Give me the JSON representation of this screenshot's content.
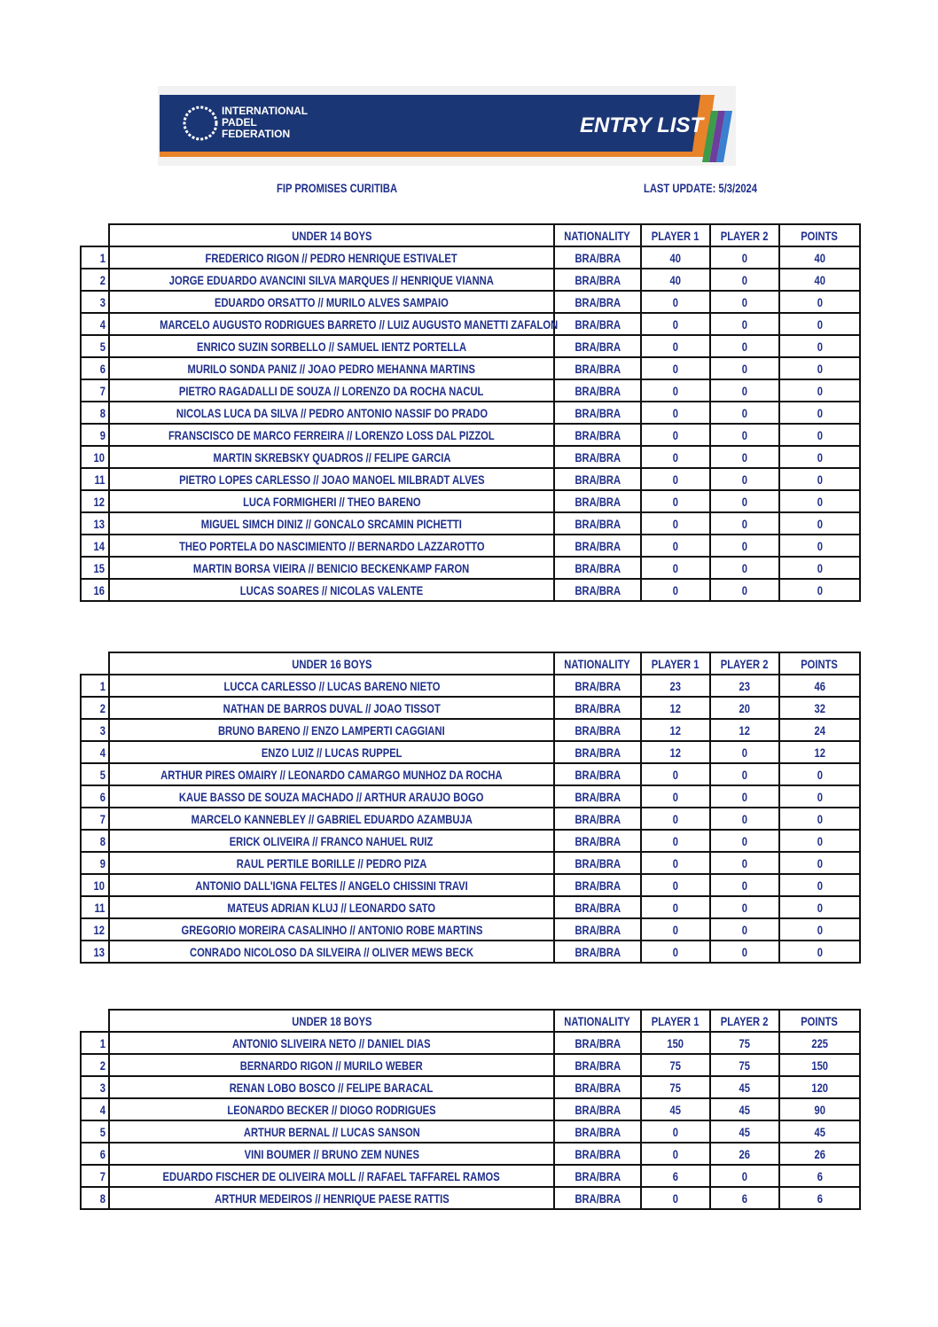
{
  "header": {
    "org": [
      "INTERNATIONAL",
      "PADEL",
      "FEDERATION"
    ],
    "title": "ENTRY LIST"
  },
  "event": "FIP PROMISES CURITIBA",
  "last_update": "LAST UPDATE: 5/3/2024",
  "tables": [
    {
      "title": "UNDER 14 BOYS",
      "columns": [
        "NATIONALITY",
        "PLAYER 1",
        "PLAYER 2",
        "POINTS"
      ],
      "rows": [
        [
          1,
          "FREDERICO RIGON // PEDRO HENRIQUE ESTIVALET",
          "BRA/BRA",
          40,
          0,
          40
        ],
        [
          2,
          "JORGE EDUARDO AVANCINI SILVA MARQUES // HENRIQUE VIANNA",
          "BRA/BRA",
          40,
          0,
          40
        ],
        [
          3,
          "EDUARDO ORSATTO // MURILO ALVES SAMPAIO",
          "BRA/BRA",
          0,
          0,
          0
        ],
        [
          4,
          "MARCELO AUGUSTO RODRIGUES BARRETO // LUIZ AUGUSTO MANETTI ZAFALON",
          "BRA/BRA",
          0,
          0,
          0
        ],
        [
          5,
          "ENRICO SUZIN SORBELLO // SAMUEL IENTZ PORTELLA",
          "BRA/BRA",
          0,
          0,
          0
        ],
        [
          6,
          "MURILO SONDA PANIZ // JOAO PEDRO MEHANNA MARTINS",
          "BRA/BRA",
          0,
          0,
          0
        ],
        [
          7,
          "PIETRO RAGADALLI DE SOUZA // LORENZO DA ROCHA NACUL",
          "BRA/BRA",
          0,
          0,
          0
        ],
        [
          8,
          "NICOLAS LUCA DA SILVA // PEDRO ANTONIO NASSIF DO PRADO",
          "BRA/BRA",
          0,
          0,
          0
        ],
        [
          9,
          "FRANSCISCO DE MARCO FERREIRA // LORENZO LOSS DAL PIZZOL",
          "BRA/BRA",
          0,
          0,
          0
        ],
        [
          10,
          "MARTIN SKREBSKY QUADROS // FELIPE GARCIA",
          "BRA/BRA",
          0,
          0,
          0
        ],
        [
          11,
          "PIETRO LOPES CARLESSO // JOAO MANOEL MILBRADT ALVES",
          "BRA/BRA",
          0,
          0,
          0
        ],
        [
          12,
          "LUCA FORMIGHERI // THEO BARENO",
          "BRA/BRA",
          0,
          0,
          0
        ],
        [
          13,
          "MIGUEL SIMCH DINIZ // GONCALO SRCAMIN PICHETTI",
          "BRA/BRA",
          0,
          0,
          0
        ],
        [
          14,
          "THEO PORTELA DO NASCIMIENTO // BERNARDO LAZZAROTTO",
          "BRA/BRA",
          0,
          0,
          0
        ],
        [
          15,
          "MARTIN BORSA VIEIRA // BENICIO BECKENKAMP FARON",
          "BRA/BRA",
          0,
          0,
          0
        ],
        [
          16,
          "LUCAS SOARES // NICOLAS VALENTE",
          "BRA/BRA",
          0,
          0,
          0
        ]
      ]
    },
    {
      "title": "UNDER 16 BOYS",
      "columns": [
        "NATIONALITY",
        "PLAYER 1",
        "PLAYER 2",
        "POINTS"
      ],
      "rows": [
        [
          1,
          "LUCCA CARLESSO // LUCAS BARENO NIETO",
          "BRA/BRA",
          23,
          23,
          46
        ],
        [
          2,
          "NATHAN DE BARROS DUVAL // JOAO TISSOT",
          "BRA/BRA",
          12,
          20,
          32
        ],
        [
          3,
          "BRUNO BARENO // ENZO LAMPERTI CAGGIANI",
          "BRA/BRA",
          12,
          12,
          24
        ],
        [
          4,
          "ENZO LUIZ // LUCAS RUPPEL",
          "BRA/BRA",
          12,
          0,
          12
        ],
        [
          5,
          "ARTHUR PIRES OMAIRY // LEONARDO CAMARGO MUNHOZ DA ROCHA",
          "BRA/BRA",
          0,
          0,
          0
        ],
        [
          6,
          "KAUE BASSO DE SOUZA MACHADO // ARTHUR ARAUJO BOGO",
          "BRA/BRA",
          0,
          0,
          0
        ],
        [
          7,
          "MARCELO KANNEBLEY // GABRIEL EDUARDO AZAMBUJA",
          "BRA/BRA",
          0,
          0,
          0
        ],
        [
          8,
          "ERICK OLIVEIRA // FRANCO NAHUEL RUIZ",
          "BRA/BRA",
          0,
          0,
          0
        ],
        [
          9,
          "RAUL PERTILE BORILLE // PEDRO PIZA",
          "BRA/BRA",
          0,
          0,
          0
        ],
        [
          10,
          "ANTONIO DALL'IGNA FELTES // ANGELO CHISSINI TRAVI",
          "BRA/BRA",
          0,
          0,
          0
        ],
        [
          11,
          "MATEUS ADRIAN KLUJ // LEONARDO SATO",
          "BRA/BRA",
          0,
          0,
          0
        ],
        [
          12,
          "GREGORIO MOREIRA CASALINHO // ANTONIO ROBE MARTINS",
          "BRA/BRA",
          0,
          0,
          0
        ],
        [
          13,
          "CONRADO NICOLOSO DA SILVEIRA // OLIVER MEWS BECK",
          "BRA/BRA",
          0,
          0,
          0
        ]
      ]
    },
    {
      "title": "UNDER 18 BOYS",
      "columns": [
        "NATIONALITY",
        "PLAYER 1",
        "PLAYER 2",
        "POINTS"
      ],
      "rows": [
        [
          1,
          "ANTONIO SLIVEIRA NETO // DANIEL DIAS",
          "BRA/BRA",
          150,
          75,
          225
        ],
        [
          2,
          "BERNARDO RIGON // MURILO WEBER",
          "BRA/BRA",
          75,
          75,
          150
        ],
        [
          3,
          "RENAN LOBO BOSCO // FELIPE BARACAL",
          "BRA/BRA",
          75,
          45,
          120
        ],
        [
          4,
          "LEONARDO BECKER // DIOGO RODRIGUES",
          "BRA/BRA",
          45,
          45,
          90
        ],
        [
          5,
          "ARTHUR BERNAL // LUCAS SANSON",
          "BRA/BRA",
          0,
          45,
          45
        ],
        [
          6,
          "VINI BOUMER // BRUNO ZEM NUNES",
          "BRA/BRA",
          0,
          26,
          26
        ],
        [
          7,
          "EDUARDO FISCHER DE OLIVEIRA MOLL // RAFAEL TAFFAREL RAMOS",
          "BRA/BRA",
          6,
          0,
          6
        ],
        [
          8,
          "ARTHUR MEDEIROS // HENRIQUE PAESE RATTIS",
          "BRA/BRA",
          0,
          6,
          6
        ]
      ]
    }
  ]
}
